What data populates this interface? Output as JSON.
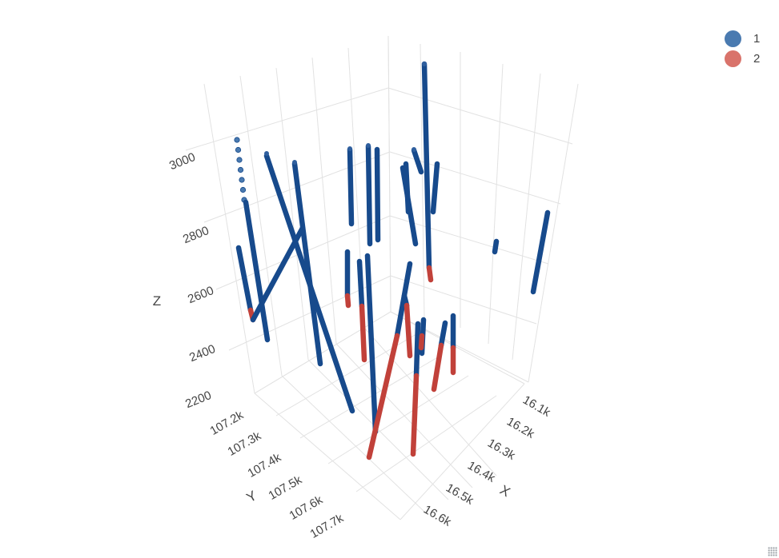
{
  "chart_data": {
    "type": "scatter3d",
    "axes": {
      "x": {
        "label": "X",
        "ticks": [
          "16.1k",
          "16.2k",
          "16.3k",
          "16.4k",
          "16.5k",
          "16.6k"
        ]
      },
      "y": {
        "label": "Y",
        "ticks": [
          "107.2k",
          "107.3k",
          "107.4k",
          "107.5k",
          "107.6k",
          "107.7k"
        ]
      },
      "z": {
        "label": "Z",
        "ticks": [
          "2200",
          "2400",
          "2600",
          "2800",
          "3000"
        ]
      }
    },
    "grid": true,
    "legend_position": "top-right",
    "legend": [
      {
        "name": "1",
        "color": "#4a7ab0"
      },
      {
        "name": "2",
        "color": "#d9736b"
      }
    ],
    "trace_colors": {
      "1": "#174a8c",
      "2": "#c1413a"
    },
    "note_values": "Drillhole traces; segments listed per hole as [start, end] in screen-projected order with class",
    "holes": [
      {
        "id": "h1",
        "segments": [
          {
            "class": "1",
            "from": [
              296,
              175
            ],
            "to": [
              305,
              250
            ],
            "dotted": true
          },
          {
            "class": "1",
            "from": [
              307,
              253
            ],
            "to": [
              334,
              425
            ]
          }
        ]
      },
      {
        "id": "h2",
        "segments": [
          {
            "class": "1",
            "from": [
              298,
              310
            ],
            "to": [
              313,
              388
            ]
          },
          {
            "class": "2",
            "from": [
              313,
              388
            ],
            "to": [
              316,
              400
            ]
          },
          {
            "class": "1",
            "from": [
              316,
              400
            ],
            "to": [
              378,
              285
            ]
          }
        ]
      },
      {
        "id": "h3",
        "segments": [
          {
            "class": "1",
            "from": [
              333,
              195
            ],
            "to": [
              440,
              514
            ]
          }
        ]
      },
      {
        "id": "h4",
        "segments": [
          {
            "class": "1",
            "from": [
              368,
              205
            ],
            "to": [
              400,
              455
            ]
          }
        ]
      },
      {
        "id": "h5",
        "segments": [
          {
            "class": "1",
            "from": [
              437,
              187
            ],
            "to": [
              439,
              280
            ]
          }
        ]
      },
      {
        "id": "h6",
        "segments": [
          {
            "class": "1",
            "from": [
              434,
              315
            ],
            "to": [
              434,
              370
            ]
          },
          {
            "class": "2",
            "from": [
              434,
              370
            ],
            "to": [
              435,
              382
            ]
          }
        ]
      },
      {
        "id": "h7",
        "segments": [
          {
            "class": "1",
            "from": [
              449,
              327
            ],
            "to": [
              452,
              383
            ]
          },
          {
            "class": "2",
            "from": [
              452,
              383
            ],
            "to": [
              455,
              450
            ]
          }
        ]
      },
      {
        "id": "h8",
        "segments": [
          {
            "class": "1",
            "from": [
              459,
              320
            ],
            "to": [
              469,
              540
            ]
          }
        ]
      },
      {
        "id": "h9",
        "segments": [
          {
            "class": "1",
            "from": [
              460,
              183
            ],
            "to": [
              462,
              305
            ]
          }
        ]
      },
      {
        "id": "h10",
        "segments": [
          {
            "class": "1",
            "from": [
              471,
              187
            ],
            "to": [
              472,
              300
            ]
          }
        ]
      },
      {
        "id": "h11",
        "segments": [
          {
            "class": "1",
            "from": [
              530,
              80
            ],
            "to": [
              536,
              335
            ]
          },
          {
            "class": "2",
            "from": [
              536,
              335
            ],
            "to": [
              538,
              350
            ]
          }
        ]
      },
      {
        "id": "h12",
        "segments": [
          {
            "class": "1",
            "from": [
              517,
              188
            ],
            "to": [
              526,
              215
            ]
          }
        ]
      },
      {
        "id": "h13",
        "segments": [
          {
            "class": "1",
            "from": [
              503,
              210
            ],
            "to": [
              519,
              305
            ]
          }
        ]
      },
      {
        "id": "h14",
        "segments": [
          {
            "class": "1",
            "from": [
              507,
              205
            ],
            "to": [
              510,
              265
            ]
          }
        ]
      },
      {
        "id": "h15",
        "segments": [
          {
            "class": "1",
            "from": [
              546,
              205
            ],
            "to": [
              541,
              265
            ]
          }
        ]
      },
      {
        "id": "h16",
        "segments": [
          {
            "class": "1",
            "from": [
              512,
              330
            ],
            "to": [
              496,
              420
            ]
          },
          {
            "class": "2",
            "from": [
              496,
              420
            ],
            "to": [
              461,
              572
            ]
          }
        ]
      },
      {
        "id": "h17",
        "segments": [
          {
            "class": "1",
            "from": [
              505,
              370
            ],
            "to": [
              508,
              382
            ]
          },
          {
            "class": "2",
            "from": [
              508,
              382
            ],
            "to": [
              512,
              445
            ]
          }
        ]
      },
      {
        "id": "h18",
        "segments": [
          {
            "class": "1",
            "from": [
              522,
              405
            ],
            "to": [
              520,
              470
            ]
          },
          {
            "class": "2",
            "from": [
              520,
              470
            ],
            "to": [
              516,
              568
            ]
          }
        ]
      },
      {
        "id": "h19",
        "segments": [
          {
            "class": "1",
            "from": [
              556,
              404
            ],
            "to": [
              551,
              432
            ]
          },
          {
            "class": "2",
            "from": [
              551,
              432
            ],
            "to": [
              542,
              487
            ]
          }
        ]
      },
      {
        "id": "h20",
        "segments": [
          {
            "class": "1",
            "from": [
              566,
              395
            ],
            "to": [
              566,
              435
            ]
          },
          {
            "class": "2",
            "from": [
              566,
              435
            ],
            "to": [
              566,
              466
            ]
          }
        ]
      },
      {
        "id": "h21",
        "segments": [
          {
            "class": "1",
            "from": [
              529,
              400
            ],
            "to": [
              527,
              442
            ]
          },
          {
            "class": "2",
            "from": [
              527,
              420
            ],
            "to": [
              526,
              435
            ]
          }
        ]
      },
      {
        "id": "h22",
        "segments": [
          {
            "class": "1",
            "from": [
              620,
              302
            ],
            "to": [
              618,
              315
            ]
          }
        ]
      },
      {
        "id": "h23",
        "segments": [
          {
            "class": "1",
            "from": [
              684,
              266
            ],
            "to": [
              666,
              365
            ]
          }
        ]
      }
    ]
  }
}
